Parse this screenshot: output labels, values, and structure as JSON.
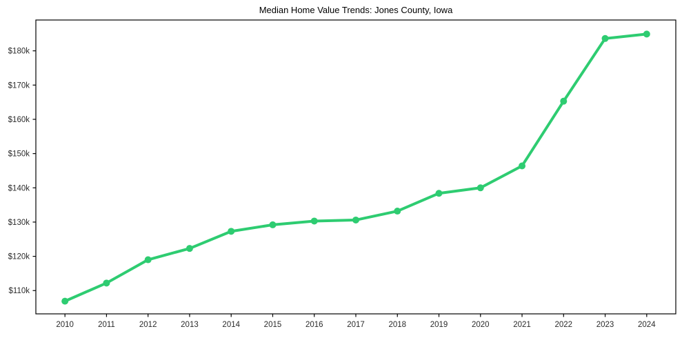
{
  "chart_data": {
    "type": "line",
    "title": "Median Home Value Trends: Jones County, Iowa",
    "xlabel": "",
    "ylabel": "",
    "x": [
      2010,
      2011,
      2012,
      2013,
      2014,
      2015,
      2016,
      2017,
      2018,
      2019,
      2020,
      2021,
      2022,
      2023,
      2024
    ],
    "x_tick_labels": [
      "2010",
      "2011",
      "2012",
      "2013",
      "2014",
      "2015",
      "2016",
      "2017",
      "2018",
      "2019",
      "2020",
      "2021",
      "2022",
      "2023",
      "2024"
    ],
    "series": [
      {
        "name": "Median Home Value",
        "color": "#2ecc71",
        "values": [
          106900,
          112200,
          119000,
          122300,
          127300,
          129200,
          130300,
          130600,
          133200,
          138400,
          140000,
          146400,
          165300,
          183600,
          184900
        ]
      }
    ],
    "y_ticks": [
      {
        "value": 110000,
        "label": "$110k"
      },
      {
        "value": 120000,
        "label": "$120k"
      },
      {
        "value": 130000,
        "label": "$130k"
      },
      {
        "value": 140000,
        "label": "$140k"
      },
      {
        "value": 150000,
        "label": "$150k"
      },
      {
        "value": 160000,
        "label": "$160k"
      },
      {
        "value": 170000,
        "label": "$170k"
      },
      {
        "value": 180000,
        "label": "$180k"
      }
    ],
    "xlim": [
      2009.3,
      2024.7
    ],
    "ylim": [
      103200,
      189000
    ],
    "grid": false,
    "legend_position": "none",
    "marker": "circle",
    "styles": {
      "line_width": 4,
      "marker_radius": 5,
      "axis_color": "#000000",
      "tick_label_color": "#2b2b2b",
      "background": "#ffffff"
    }
  }
}
